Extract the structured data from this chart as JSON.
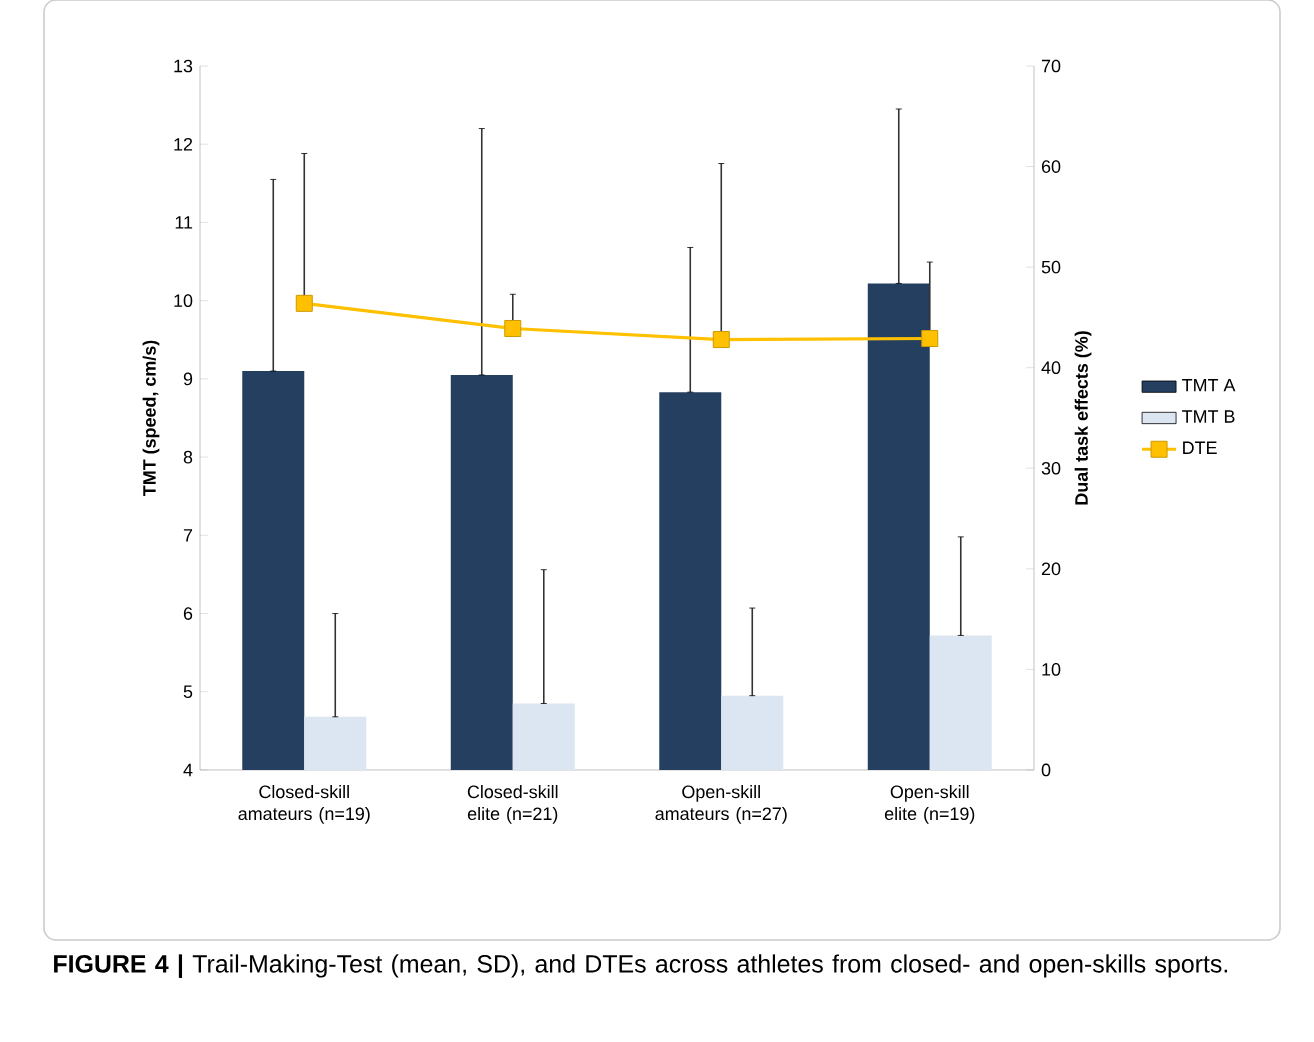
{
  "chart_data": {
    "type": "bar",
    "categories": [
      "Closed-skill amateurs (n=19)",
      "Closed-skill elite (n=21)",
      "Open-skill amateurs (n=27)",
      "Open-skill elite (n=19)"
    ],
    "ylabel": "TMT (speed, cm/s)",
    "y2label": "Dual task effects (%)",
    "ylim": [
      4,
      13
    ],
    "yticks": [
      4,
      5,
      6,
      7,
      8,
      9,
      10,
      11,
      12,
      13
    ],
    "y2lim": [
      0,
      70
    ],
    "y2ticks": [
      0,
      10,
      20,
      30,
      40,
      50,
      60,
      70
    ],
    "legend": "right",
    "grid": false,
    "annotations": [
      "**FIGURE 4 |** Trail-Making-Test (mean, SD), and DTEs across athletes from closed- and open-skills sports."
    ],
    "series": [
      {
        "name": "TMT A",
        "color": "#243f60",
        "values": [
          9.1,
          9.05,
          8.83,
          10.22
        ],
        "errors": [
          [
            9.1,
            11.55
          ],
          [
            9.05,
            12.2
          ],
          [
            8.83,
            10.68
          ],
          [
            10.22,
            12.45
          ]
        ]
      },
      {
        "name": "TMT B",
        "color": "#dce6f2",
        "values": [
          4.68,
          4.85,
          4.95,
          5.72
        ],
        "errors": [
          [
            4.68,
            6.0
          ],
          [
            4.85,
            6.56
          ],
          [
            4.95,
            6.07
          ],
          [
            5.72,
            6.98
          ]
        ]
      },
      {
        "name": "DTE",
        "type": "line",
        "axis": "y2",
        "color": "#ffc000",
        "marker": "square",
        "values": [
          46.4,
          43.9,
          42.8,
          42.9
        ],
        "errors": [
          [
            46.4,
            61.3
          ],
          [
            43.9,
            47.3
          ],
          [
            42.8,
            60.3
          ],
          [
            42.9,
            50.5
          ]
        ]
      }
    ]
  }
}
